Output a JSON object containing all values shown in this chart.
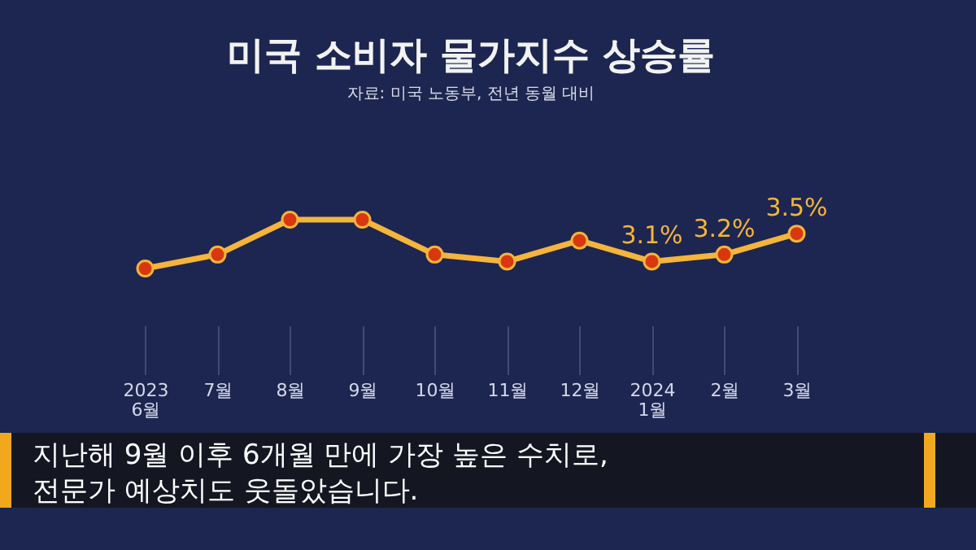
{
  "chart_data": {
    "type": "line",
    "title": "미국 소비자 물가지수 상승률",
    "subtitle": "자료: 미국 노동부, 전년 동월 대비",
    "categories": [
      "2023\n6월",
      "7월",
      "8월",
      "9월",
      "10월",
      "11월",
      "12월",
      "2024\n1월",
      "2월",
      "3월"
    ],
    "series": [
      {
        "color": "#f5b43c",
        "values": [
          3.0,
          3.2,
          3.7,
          3.7,
          3.2,
          3.1,
          3.4,
          3.1,
          3.2,
          3.5
        ],
        "value_labels": [
          null,
          null,
          null,
          null,
          null,
          null,
          null,
          "3.1%",
          "3.2%",
          "3.5%"
        ]
      }
    ],
    "marker": "circle",
    "grid": "x",
    "tick_labels": "x",
    "annotations": [
      "지난해 9월 이후 6개월 만에 가장 높은 수치로,\n전문가 예상치도 웃돌았습니다."
    ]
  }
}
